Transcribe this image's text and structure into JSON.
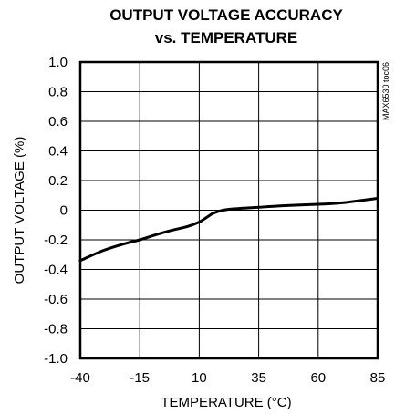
{
  "chart_data": {
    "type": "line",
    "title_line1": "OUTPUT VOLTAGE ACCURACY",
    "title_line2": "vs. TEMPERATURE",
    "xlabel": "TEMPERATURE (°C)",
    "ylabel": "OUTPUT VOLTAGE (%)",
    "side_code": "MAX6530 toc06",
    "xlim": [
      -40,
      85
    ],
    "ylim": [
      -1.0,
      1.0
    ],
    "x_ticks": [
      "-40",
      "-15",
      "10",
      "35",
      "60",
      "85"
    ],
    "y_ticks": [
      "1.0",
      "0.8",
      "0.6",
      "0.4",
      "0.2",
      "0",
      "-0.2",
      "-0.4",
      "-0.6",
      "-0.8",
      "-1.0"
    ],
    "grid": true,
    "series": [
      {
        "x": [
          -40,
          -30,
          -20,
          -15,
          -5,
          5,
          10,
          13,
          16,
          20,
          25,
          35,
          45,
          60,
          70,
          85
        ],
        "y": [
          -0.34,
          -0.27,
          -0.22,
          -0.2,
          -0.15,
          -0.11,
          -0.08,
          -0.05,
          -0.02,
          0.0,
          0.01,
          0.02,
          0.03,
          0.04,
          0.05,
          0.08
        ]
      }
    ]
  }
}
